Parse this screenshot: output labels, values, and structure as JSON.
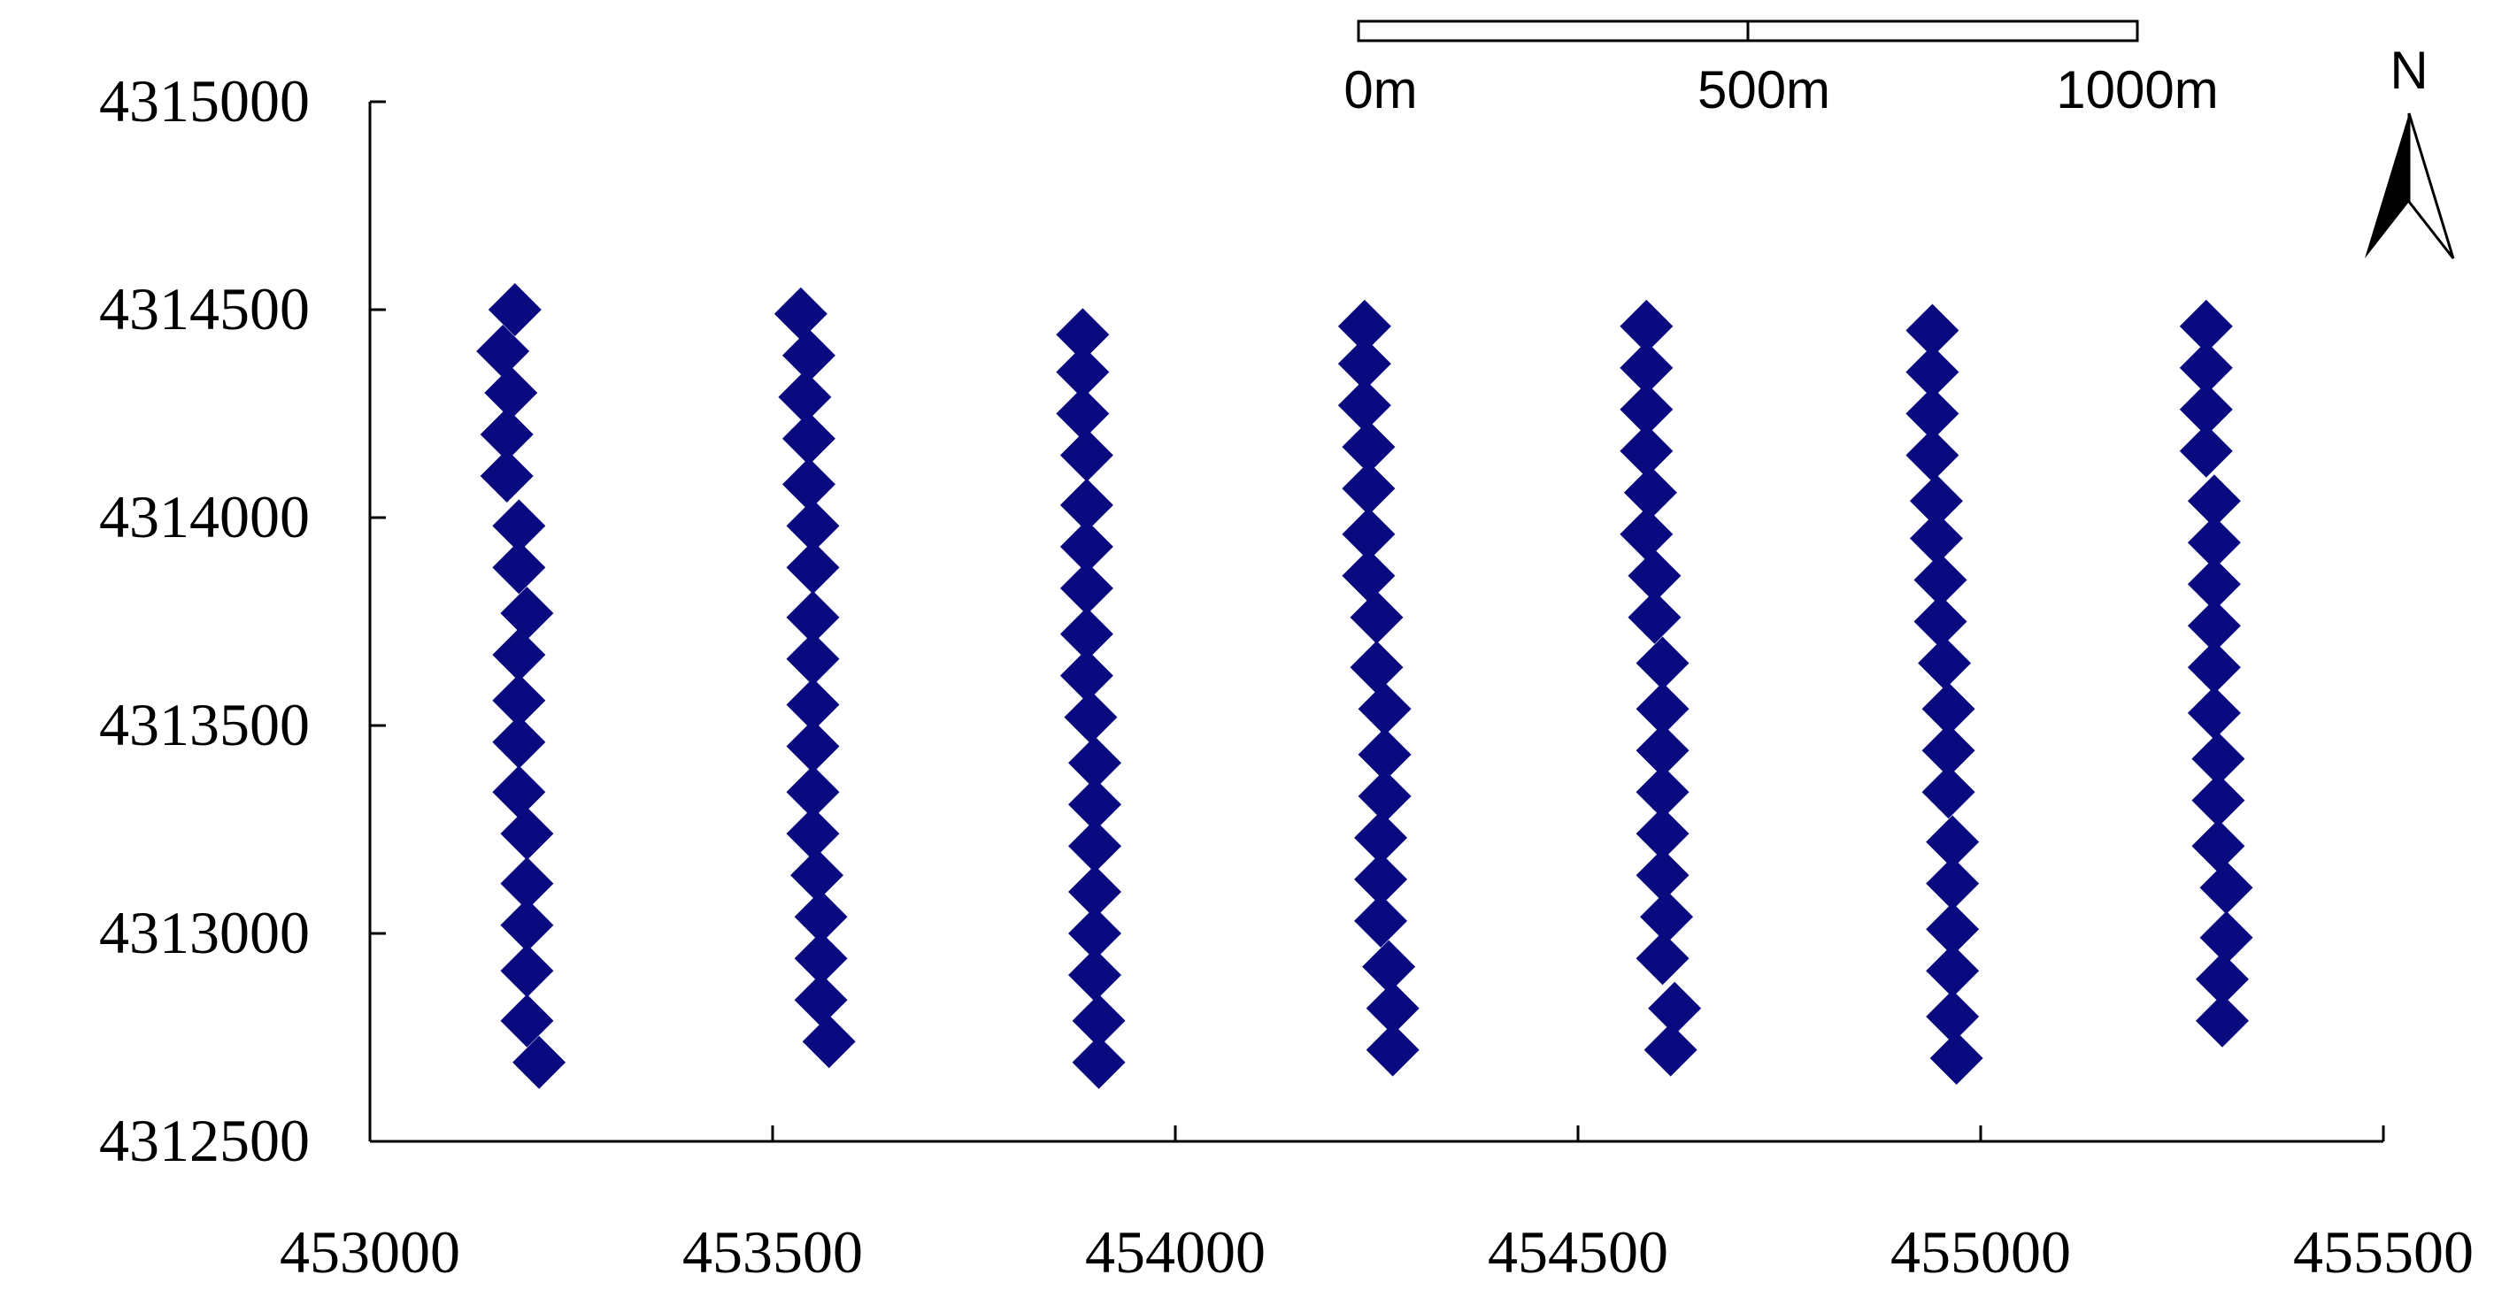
{
  "chart_data": {
    "type": "scatter",
    "title": "",
    "xlabel": "",
    "ylabel": "",
    "xlim": [
      453000,
      455500
    ],
    "ylim": [
      4312500,
      4315000
    ],
    "x_ticks": [
      "453000",
      "453500",
      "454000",
      "454500",
      "455000",
      "455500"
    ],
    "y_ticks": [
      "4315000",
      "4314500",
      "4314000",
      "4313500",
      "4313000",
      "4312500"
    ],
    "grid": false,
    "legend": "none",
    "marker": "diamond",
    "color": "#0a0a80",
    "series": [
      {
        "points": [
          [
            453180,
            4314500
          ],
          [
            453165,
            4314400
          ],
          [
            453175,
            4314300
          ],
          [
            453170,
            4314200
          ],
          [
            453170,
            4314100
          ],
          [
            453185,
            4313980
          ],
          [
            453185,
            4313880
          ],
          [
            453195,
            4313770
          ],
          [
            453185,
            4313670
          ],
          [
            453185,
            4313560
          ],
          [
            453185,
            4313460
          ],
          [
            453185,
            4313340
          ],
          [
            453195,
            4313240
          ],
          [
            453195,
            4313120
          ],
          [
            453195,
            4313020
          ],
          [
            453195,
            4312910
          ],
          [
            453195,
            4312790
          ],
          [
            453210,
            4312690
          ]
        ]
      },
      {
        "points": [
          [
            453535,
            4314490
          ],
          [
            453545,
            4314390
          ],
          [
            453540,
            4314290
          ],
          [
            453545,
            4314190
          ],
          [
            453545,
            4314080
          ],
          [
            453550,
            4313980
          ],
          [
            453550,
            4313880
          ],
          [
            453550,
            4313760
          ],
          [
            453550,
            4313660
          ],
          [
            453550,
            4313550
          ],
          [
            453550,
            4313450
          ],
          [
            453550,
            4313340
          ],
          [
            453550,
            4313240
          ],
          [
            453555,
            4313140
          ],
          [
            453560,
            4313040
          ],
          [
            453560,
            4312940
          ],
          [
            453560,
            4312840
          ],
          [
            453570,
            4312740
          ]
        ]
      },
      {
        "points": [
          [
            453885,
            4314440
          ],
          [
            453885,
            4314350
          ],
          [
            453885,
            4314250
          ],
          [
            453890,
            4314150
          ],
          [
            453890,
            4314030
          ],
          [
            453890,
            4313930
          ],
          [
            453890,
            4313830
          ],
          [
            453890,
            4313720
          ],
          [
            453890,
            4313620
          ],
          [
            453895,
            4313520
          ],
          [
            453900,
            4313410
          ],
          [
            453900,
            4313310
          ],
          [
            453900,
            4313210
          ],
          [
            453900,
            4313100
          ],
          [
            453900,
            4313000
          ],
          [
            453900,
            4312900
          ],
          [
            453905,
            4312790
          ],
          [
            453905,
            4312690
          ]
        ]
      },
      {
        "points": [
          [
            454235,
            4314460
          ],
          [
            454235,
            4314370
          ],
          [
            454235,
            4314270
          ],
          [
            454240,
            4314170
          ],
          [
            454240,
            4314070
          ],
          [
            454240,
            4313960
          ],
          [
            454240,
            4313860
          ],
          [
            454250,
            4313760
          ],
          [
            454250,
            4313640
          ],
          [
            454260,
            4313540
          ],
          [
            454260,
            4313430
          ],
          [
            454260,
            4313330
          ],
          [
            454255,
            4313230
          ],
          [
            454255,
            4313130
          ],
          [
            454255,
            4313030
          ],
          [
            454265,
            4312920
          ],
          [
            454270,
            4312820
          ],
          [
            454270,
            4312720
          ]
        ]
      },
      {
        "points": [
          [
            454585,
            4314460
          ],
          [
            454585,
            4314360
          ],
          [
            454585,
            4314260
          ],
          [
            454585,
            4314160
          ],
          [
            454590,
            4314060
          ],
          [
            454585,
            4313960
          ],
          [
            454595,
            4313860
          ],
          [
            454595,
            4313760
          ],
          [
            454605,
            4313650
          ],
          [
            454605,
            4313540
          ],
          [
            454605,
            4313440
          ],
          [
            454605,
            4313340
          ],
          [
            454605,
            4313240
          ],
          [
            454605,
            4313140
          ],
          [
            454610,
            4313040
          ],
          [
            454605,
            4312940
          ],
          [
            454620,
            4312820
          ],
          [
            454615,
            4312720
          ]
        ]
      },
      {
        "points": [
          [
            454940,
            4314450
          ],
          [
            454940,
            4314350
          ],
          [
            454940,
            4314250
          ],
          [
            454940,
            4314150
          ],
          [
            454945,
            4314040
          ],
          [
            454945,
            4313950
          ],
          [
            454950,
            4313850
          ],
          [
            454950,
            4313750
          ],
          [
            454955,
            4313650
          ],
          [
            454960,
            4313540
          ],
          [
            454960,
            4313440
          ],
          [
            454960,
            4313340
          ],
          [
            454965,
            4313220
          ],
          [
            454965,
            4313120
          ],
          [
            454965,
            4313010
          ],
          [
            454965,
            4312910
          ],
          [
            454965,
            4312800
          ],
          [
            454970,
            4312700
          ]
        ]
      },
      {
        "points": [
          [
            455280,
            4314460
          ],
          [
            455280,
            4314360
          ],
          [
            455280,
            4314260
          ],
          [
            455280,
            4314160
          ],
          [
            455290,
            4314040
          ],
          [
            455290,
            4313940
          ],
          [
            455290,
            4313840
          ],
          [
            455290,
            4313740
          ],
          [
            455290,
            4313640
          ],
          [
            455290,
            4313530
          ],
          [
            455295,
            4313420
          ],
          [
            455295,
            4313320
          ],
          [
            455295,
            4313210
          ],
          [
            455305,
            4313110
          ],
          [
            455305,
            4312990
          ],
          [
            455300,
            4312890
          ],
          [
            455300,
            4312790
          ]
        ]
      }
    ]
  },
  "scale_bar": {
    "labels": [
      "0m",
      "500m",
      "1000m"
    ]
  },
  "north_arrow": {
    "label": "N",
    "icon": "north-arrow-icon"
  }
}
